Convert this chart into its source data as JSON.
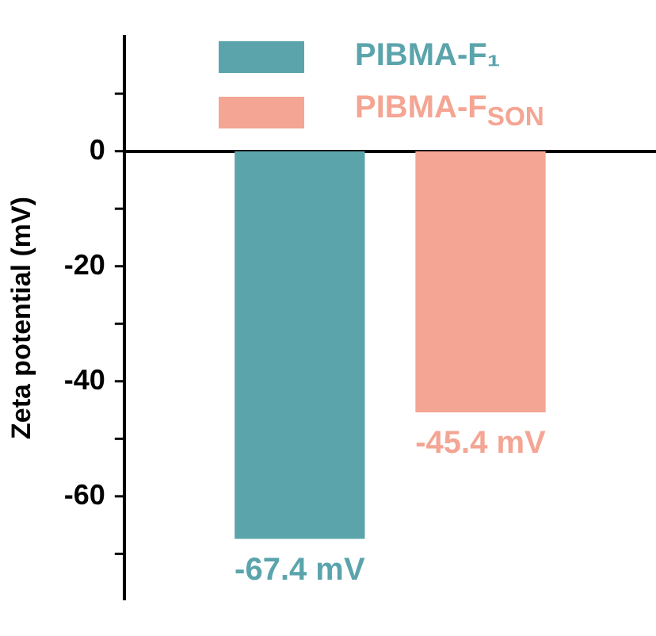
{
  "chart_data": {
    "type": "bar",
    "ylabel": "Zeta potential (mV)",
    "categories": [
      null
    ],
    "series": [
      {
        "name": "PIBMA-F₁",
        "color": "#5ba4ac",
        "values": [
          -67.4
        ],
        "value_labels": [
          "-67.4 mV"
        ]
      },
      {
        "name": "PIBMA-F$_{SON}$",
        "color": "#f4a593",
        "values": [
          -45.4
        ],
        "value_labels": [
          "-45.4 mV"
        ]
      }
    ],
    "ylim": [
      -78,
      20
    ],
    "yticks": [
      {
        "value": 10,
        "label": null
      },
      0,
      {
        "value": -10,
        "label": null
      },
      -20,
      {
        "value": -30,
        "label": null
      },
      -40,
      {
        "value": -50,
        "label": null
      },
      -60,
      {
        "value": -70,
        "label": null
      }
    ],
    "legend": "top right",
    "tick_labels": "y"
  }
}
